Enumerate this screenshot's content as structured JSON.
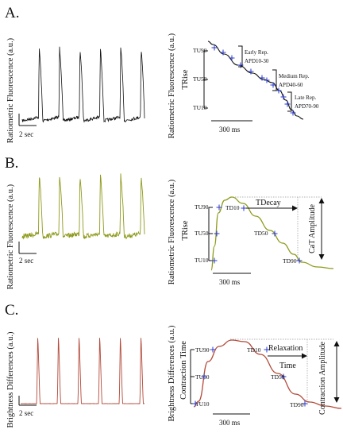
{
  "panels": [
    {
      "letter": "A.",
      "left_ylabel": "Ratiometric Fluorescence (a.u.)",
      "left_scale": "2 sec",
      "right_ylabel": "Ratiometric Fluorescence (a.u.)",
      "right_inner_label": "TRise",
      "right_scale": "300 ms",
      "trace_color": "#111111",
      "ticks": [
        "TU90",
        "TU50",
        "TU10"
      ],
      "brackets": [
        {
          "line1": "Early Rep.",
          "line2": "APD10-30"
        },
        {
          "line1": "Medium Rep.",
          "line2": "APD40-60"
        },
        {
          "line1": "Late Rep.",
          "line2": "APD70-90"
        }
      ]
    },
    {
      "letter": "B.",
      "left_ylabel": "Ratiometric Fluorescence (a.u.)",
      "left_scale": "2 sec",
      "right_ylabel": "Ratiometric Fluorescence (a.u.)",
      "right_inner_label": "TRise",
      "right_scale": "300 ms",
      "trace_color": "#8f9a1c",
      "ticks": [
        "TU90",
        "TU50",
        "TU10"
      ],
      "points": [
        "TD10",
        "TD50",
        "TD90"
      ],
      "decay_label": "TDecay",
      "amplitude_label": "CaT Amplitude"
    },
    {
      "letter": "C.",
      "left_ylabel": "Brightness Differences (a.u.)",
      "left_scale": "2 sec",
      "right_ylabel": "Brightness Differences (a.u.)",
      "right_inner_label": "Contraction Time",
      "right_scale": "300 ms",
      "trace_color": "#b34a3a",
      "ticks": [
        "TU90",
        "TU50",
        "TU10"
      ],
      "points": [
        "TD10",
        "TD50",
        "TD90"
      ],
      "relax_line1": "Relaxation",
      "relax_line2": "Time",
      "amplitude_label": "Contraction Amplitude"
    }
  ],
  "chart_data": [
    {
      "type": "line",
      "title": "",
      "xlabel": "",
      "ylabel": "Ratiometric Fluorescence (a.u.)",
      "beats": 6,
      "scale_bar": "2 sec"
    },
    {
      "type": "line",
      "title": "",
      "xlabel": "",
      "ylabel": "Ratiometric Fluorescence (a.u.)",
      "markers": [
        "TU10",
        "TU50",
        "TU90"
      ],
      "scale_bar": "300 ms"
    },
    {
      "type": "line",
      "title": "",
      "xlabel": "",
      "ylabel": "Ratiometric Fluorescence (a.u.)",
      "beats": 6,
      "scale_bar": "2 sec"
    },
    {
      "type": "line",
      "title": "",
      "xlabel": "",
      "ylabel": "Ratiometric Fluorescence (a.u.)",
      "markers": [
        "TU10",
        "TU50",
        "TU90",
        "TD10",
        "TD50",
        "TD90"
      ],
      "scale_bar": "300 ms"
    },
    {
      "type": "line",
      "title": "",
      "xlabel": "",
      "ylabel": "Brightness Differences (a.u.)",
      "beats": 6,
      "scale_bar": "2 sec"
    },
    {
      "type": "line",
      "title": "",
      "xlabel": "",
      "ylabel": "Brightness Differences (a.u.)",
      "markers": [
        "TU10",
        "TU50",
        "TU90",
        "TD10",
        "TD50",
        "TD90"
      ],
      "scale_bar": "300 ms"
    }
  ]
}
